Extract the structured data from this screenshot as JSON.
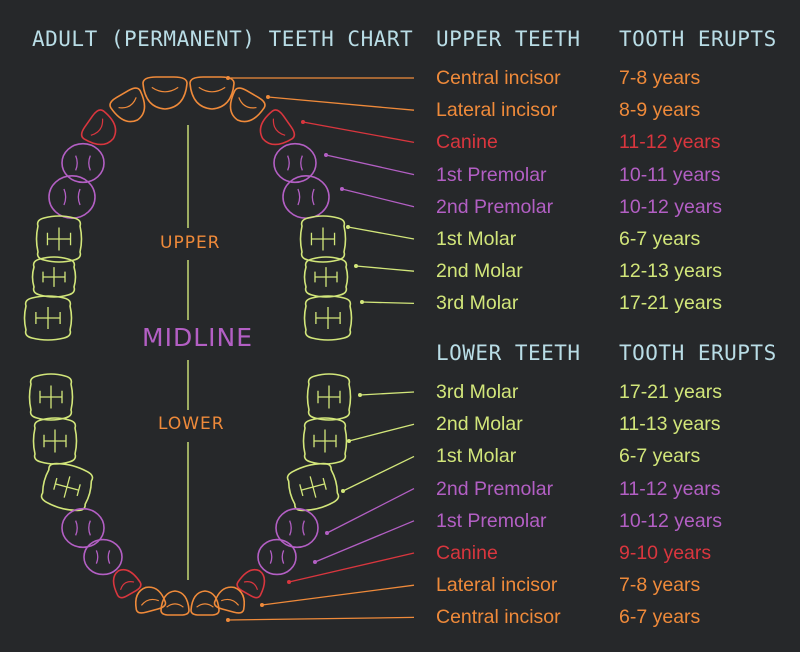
{
  "title": "ADULT (PERMANENT) TEETH CHART",
  "colors": {
    "incisor": "#ef8a3a",
    "canine": "#d9363e",
    "premolar": "#b35fc4",
    "molar": "#d2e67a",
    "header": "#b9dde6",
    "midline_bar": "#d2e67a"
  },
  "arch_labels": {
    "upper": "UPPER",
    "midline": "MIDLINE",
    "lower": "LOWER"
  },
  "upper": {
    "heading": "UPPER TEETH",
    "erupts_heading": "TOOTH ERUPTS",
    "rows": [
      {
        "name": "Central incisor",
        "erupts": "7-8 years",
        "type": "incisor"
      },
      {
        "name": "Lateral incisor",
        "erupts": "8-9 years",
        "type": "incisor"
      },
      {
        "name": "Canine",
        "erupts": "11-12 years",
        "type": "canine"
      },
      {
        "name": "1st Premolar",
        "erupts": "10-11 years",
        "type": "premolar"
      },
      {
        "name": "2nd Premolar",
        "erupts": "10-12 years",
        "type": "premolar"
      },
      {
        "name": "1st Molar",
        "erupts": "6-7 years",
        "type": "molar"
      },
      {
        "name": "2nd Molar",
        "erupts": "12-13 years",
        "type": "molar"
      },
      {
        "name": "3rd Molar",
        "erupts": "17-21 years",
        "type": "molar"
      }
    ]
  },
  "lower": {
    "heading": "LOWER TEETH",
    "erupts_heading": "TOOTH ERUPTS",
    "rows": [
      {
        "name": "3rd Molar",
        "erupts": "17-21 years",
        "type": "molar"
      },
      {
        "name": "2nd Molar",
        "erupts": "11-13 years",
        "type": "molar"
      },
      {
        "name": "1st Molar",
        "erupts": "6-7 years",
        "type": "molar"
      },
      {
        "name": "2nd Premolar",
        "erupts": "11-12 years",
        "type": "premolar"
      },
      {
        "name": "1st Premolar",
        "erupts": "10-12 years",
        "type": "premolar"
      },
      {
        "name": "Canine",
        "erupts": "9-10 years",
        "type": "canine"
      },
      {
        "name": "Lateral incisor",
        "erupts": "7-8 years",
        "type": "incisor"
      },
      {
        "name": "Central incisor",
        "erupts": "6-7 years",
        "type": "incisor"
      }
    ]
  }
}
